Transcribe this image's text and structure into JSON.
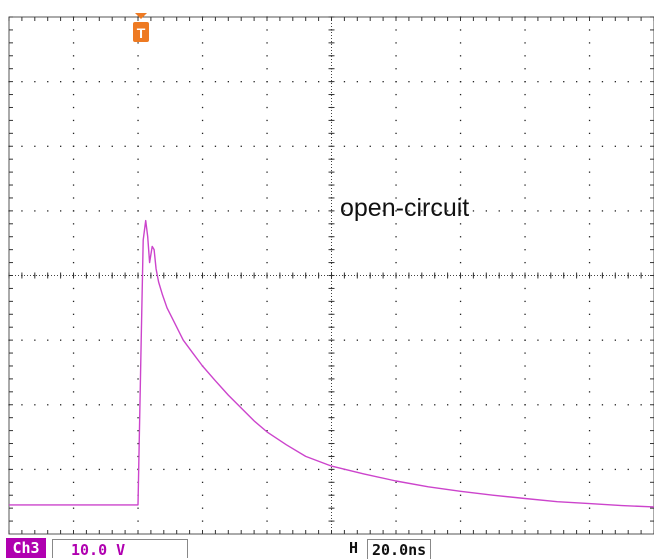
{
  "annotation": "open-circuit",
  "trigger_marker": "T",
  "status_bar": {
    "channel": "Ch3",
    "volts_per_div": "10.0 V",
    "horizontal_label": "H",
    "time_per_div": "20.0ns"
  },
  "colors": {
    "trace": "#cc44cc",
    "grid": "#222222",
    "trigger": "#ee7a22",
    "channel_badge": "#b000b0"
  },
  "icons": {
    "trigger": "trigger-marker-icon"
  },
  "chart_data": {
    "type": "line",
    "title": "",
    "xlabel": "",
    "ylabel": "",
    "x_divisions": 10,
    "y_divisions": 8,
    "x_unit": "div",
    "y_unit": "div",
    "xlim": [
      0,
      10
    ],
    "ylim": [
      0,
      8
    ],
    "grid": true,
    "series": [
      {
        "name": "",
        "x": [
          0,
          1.0,
          2.0,
          2.05,
          2.08,
          2.12,
          2.15,
          2.18,
          2.22,
          2.25,
          2.28,
          2.32,
          2.38,
          2.45,
          2.55,
          2.7,
          2.85,
          3.0,
          3.2,
          3.4,
          3.6,
          3.8,
          4.0,
          4.3,
          4.6,
          5.0,
          5.5,
          6.0,
          6.5,
          7.0,
          7.5,
          8.0,
          8.5,
          9.0,
          9.5,
          10.0
        ],
        "y": [
          0.45,
          0.45,
          0.45,
          3.0,
          4.55,
          4.85,
          4.6,
          4.2,
          4.45,
          4.4,
          4.1,
          3.9,
          3.7,
          3.5,
          3.3,
          3.0,
          2.8,
          2.6,
          2.37,
          2.15,
          1.95,
          1.75,
          1.58,
          1.38,
          1.2,
          1.05,
          0.93,
          0.82,
          0.73,
          0.66,
          0.6,
          0.55,
          0.5,
          0.47,
          0.44,
          0.42
        ]
      }
    ]
  }
}
